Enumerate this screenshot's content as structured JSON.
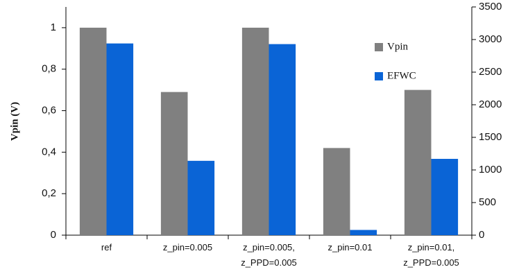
{
  "chart_data": {
    "type": "bar",
    "y_label": "Vpin (V)",
    "categories": [
      "ref",
      "z_pin=0.005",
      "z_pin=0.005,\nz_PPD=0.005",
      "z_pin=0.01",
      "z_pin=0.01,\nz_PPD=0.005"
    ],
    "series": [
      {
        "name": "Vpin",
        "color": "#808080",
        "values": [
          1.0,
          0.69,
          1.0,
          0.42,
          0.7
        ]
      },
      {
        "name": "EFWC",
        "color": "#0a64d6",
        "axis": "y2",
        "values": [
          2940,
          1140,
          2930,
          80,
          1170
        ]
      }
    ],
    "ylim": [
      0,
      1.1
    ],
    "yticks": [
      0,
      {
        "value": 0.2,
        "label": "0,2"
      },
      {
        "value": 0.4,
        "label": "0,4"
      },
      {
        "value": 0.6,
        "label": "0,6"
      },
      {
        "value": 0.8,
        "label": "0,8"
      },
      1
    ],
    "y2lim": [
      0,
      3500
    ],
    "y2ticks": [
      0,
      500,
      1000,
      1500,
      2000,
      2500,
      3000,
      3500
    ],
    "grid": false,
    "legend": "upper-right"
  }
}
